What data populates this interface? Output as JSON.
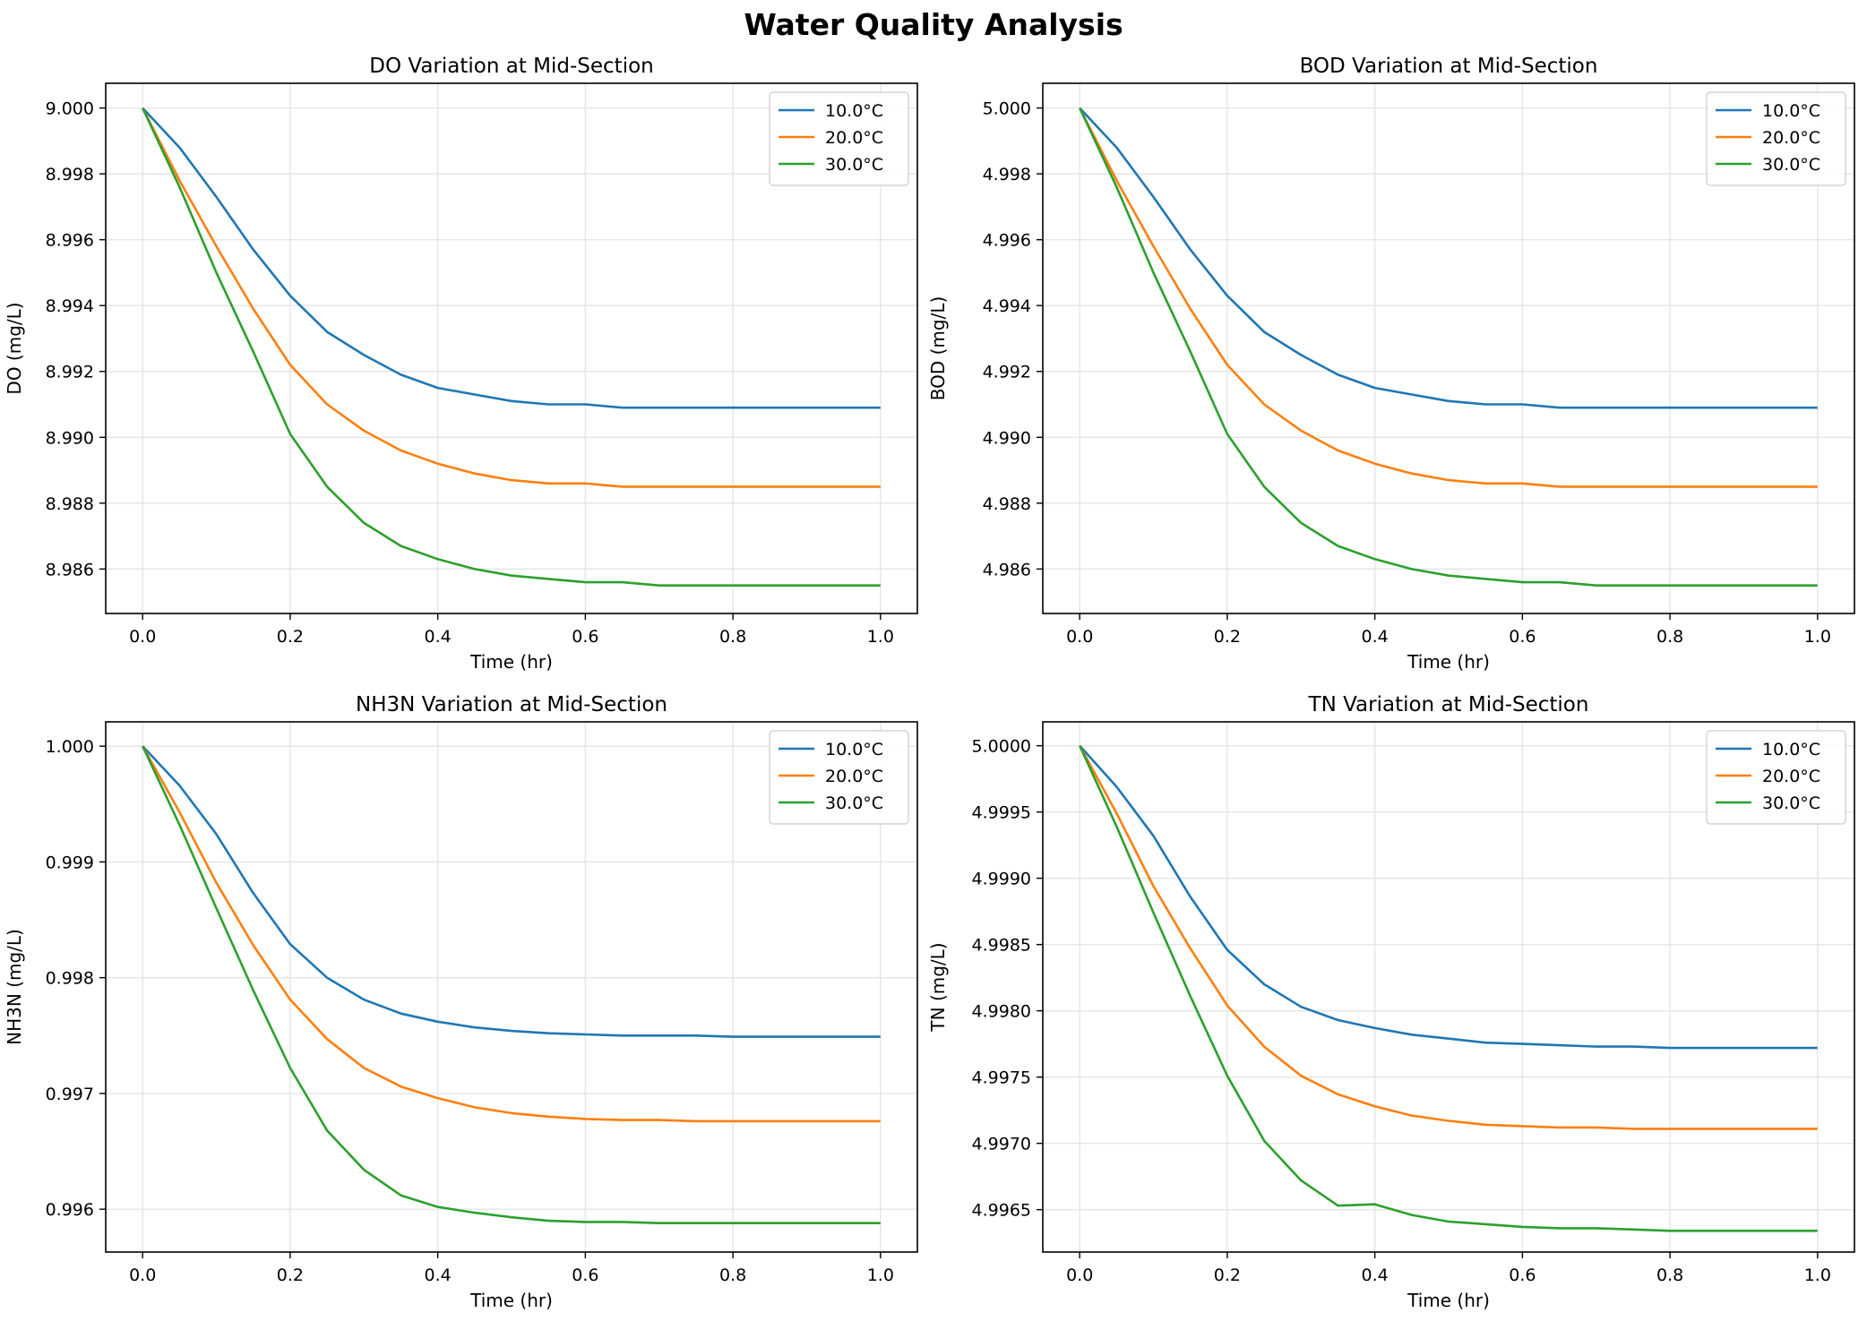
{
  "figure": {
    "title": "Water Quality Analysis"
  },
  "series_colors": [
    "#1f77b4",
    "#ff7f0e",
    "#2ca02c"
  ],
  "chart_data": [
    {
      "type": "line",
      "title": "DO Variation at Mid-Section",
      "xlabel": "Time (hr)",
      "ylabel": "DO (mg/L)",
      "xlim": [
        -0.05,
        1.05
      ],
      "ylim": [
        8.98465,
        9.00075
      ],
      "xticks": [
        0.0,
        0.2,
        0.4,
        0.6,
        0.8,
        1.0
      ],
      "xtick_labels": [
        "0.0",
        "0.2",
        "0.4",
        "0.6",
        "0.8",
        "1.0"
      ],
      "yticks": [
        8.986,
        8.988,
        8.99,
        8.992,
        8.994,
        8.996,
        8.998,
        9.0
      ],
      "ytick_labels": [
        "8.986",
        "8.988",
        "8.990",
        "8.992",
        "8.994",
        "8.996",
        "8.998",
        "9.000"
      ],
      "grid": true,
      "legend": "top-right",
      "x": [
        0,
        0.05,
        0.1,
        0.15,
        0.2,
        0.25,
        0.3,
        0.35,
        0.4,
        0.45,
        0.5,
        0.55,
        0.6,
        0.65,
        0.7,
        0.75,
        0.8,
        0.85,
        0.9,
        0.95,
        1.0
      ],
      "series": [
        {
          "name": "10.0°C",
          "values": [
            9.0,
            8.9988,
            8.9973,
            8.9957,
            8.9943,
            8.9932,
            8.9925,
            8.9919,
            8.9915,
            8.9913,
            8.9911,
            8.991,
            8.991,
            8.9909,
            8.9909,
            8.9909,
            8.9909,
            8.9909,
            8.9909,
            8.9909,
            8.9909
          ]
        },
        {
          "name": "20.0°C",
          "values": [
            9.0,
            8.9978,
            8.9958,
            8.9939,
            8.9922,
            8.991,
            8.9902,
            8.9896,
            8.9892,
            8.9889,
            8.9887,
            8.9886,
            8.9886,
            8.9885,
            8.9885,
            8.9885,
            8.9885,
            8.9885,
            8.9885,
            8.9885,
            8.9885
          ]
        },
        {
          "name": "30.0°C",
          "values": [
            9.0,
            8.9976,
            8.995,
            8.9926,
            8.9901,
            8.9885,
            8.9874,
            8.9867,
            8.9863,
            8.986,
            8.9858,
            8.9857,
            8.9856,
            8.9856,
            8.9855,
            8.9855,
            8.9855,
            8.9855,
            8.9855,
            8.9855,
            8.9855
          ]
        }
      ]
    },
    {
      "type": "line",
      "title": "BOD Variation at Mid-Section",
      "xlabel": "Time (hr)",
      "ylabel": "BOD (mg/L)",
      "xlim": [
        -0.05,
        1.05
      ],
      "ylim": [
        4.98465,
        5.00075
      ],
      "xticks": [
        0.0,
        0.2,
        0.4,
        0.6,
        0.8,
        1.0
      ],
      "xtick_labels": [
        "0.0",
        "0.2",
        "0.4",
        "0.6",
        "0.8",
        "1.0"
      ],
      "yticks": [
        4.986,
        4.988,
        4.99,
        4.992,
        4.994,
        4.996,
        4.998,
        5.0
      ],
      "ytick_labels": [
        "4.986",
        "4.988",
        "4.990",
        "4.992",
        "4.994",
        "4.996",
        "4.998",
        "5.000"
      ],
      "grid": true,
      "legend": "top-right",
      "x": [
        0,
        0.05,
        0.1,
        0.15,
        0.2,
        0.25,
        0.3,
        0.35,
        0.4,
        0.45,
        0.5,
        0.55,
        0.6,
        0.65,
        0.7,
        0.75,
        0.8,
        0.85,
        0.9,
        0.95,
        1.0
      ],
      "series": [
        {
          "name": "10.0°C",
          "values": [
            5.0,
            4.9988,
            4.9973,
            4.9957,
            4.9943,
            4.9932,
            4.9925,
            4.9919,
            4.9915,
            4.9913,
            4.9911,
            4.991,
            4.991,
            4.9909,
            4.9909,
            4.9909,
            4.9909,
            4.9909,
            4.9909,
            4.9909,
            4.9909
          ]
        },
        {
          "name": "20.0°C",
          "values": [
            5.0,
            4.9978,
            4.9958,
            4.9939,
            4.9922,
            4.991,
            4.9902,
            4.9896,
            4.9892,
            4.9889,
            4.9887,
            4.9886,
            4.9886,
            4.9885,
            4.9885,
            4.9885,
            4.9885,
            4.9885,
            4.9885,
            4.9885,
            4.9885
          ]
        },
        {
          "name": "30.0°C",
          "values": [
            5.0,
            4.9976,
            4.995,
            4.9926,
            4.9901,
            4.9885,
            4.9874,
            4.9867,
            4.9863,
            4.986,
            4.9858,
            4.9857,
            4.9856,
            4.9856,
            4.9855,
            4.9855,
            4.9855,
            4.9855,
            4.9855,
            4.9855,
            4.9855
          ]
        }
      ]
    },
    {
      "type": "line",
      "title": "NH3N Variation at Mid-Section",
      "xlabel": "Time (hr)",
      "ylabel": "NH3N (mg/L)",
      "xlim": [
        -0.05,
        1.05
      ],
      "ylim": [
        0.99563,
        1.00021
      ],
      "xticks": [
        0.0,
        0.2,
        0.4,
        0.6,
        0.8,
        1.0
      ],
      "xtick_labels": [
        "0.0",
        "0.2",
        "0.4",
        "0.6",
        "0.8",
        "1.0"
      ],
      "yticks": [
        0.996,
        0.997,
        0.998,
        0.999,
        1.0
      ],
      "ytick_labels": [
        "0.996",
        "0.997",
        "0.998",
        "0.999",
        "1.000"
      ],
      "grid": true,
      "legend": "top-right",
      "x": [
        0,
        0.05,
        0.1,
        0.15,
        0.2,
        0.25,
        0.3,
        0.35,
        0.4,
        0.45,
        0.5,
        0.55,
        0.6,
        0.65,
        0.7,
        0.75,
        0.8,
        0.85,
        0.9,
        0.95,
        1.0
      ],
      "series": [
        {
          "name": "10.0°C",
          "values": [
            1.0,
            0.99966,
            0.99924,
            0.99873,
            0.99829,
            0.998,
            0.99781,
            0.99769,
            0.99762,
            0.99757,
            0.99754,
            0.99752,
            0.99751,
            0.9975,
            0.9975,
            0.9975,
            0.99749,
            0.99749,
            0.99749,
            0.99749,
            0.99749
          ]
        },
        {
          "name": "20.0°C",
          "values": [
            1.0,
            0.99943,
            0.99882,
            0.99828,
            0.99781,
            0.99747,
            0.99722,
            0.99706,
            0.99696,
            0.99688,
            0.99683,
            0.9968,
            0.99678,
            0.99677,
            0.99677,
            0.99676,
            0.99676,
            0.99676,
            0.99676,
            0.99676,
            0.99676
          ]
        },
        {
          "name": "30.0°C",
          "values": [
            1.0,
            0.99932,
            0.9986,
            0.99789,
            0.99722,
            0.99668,
            0.99634,
            0.99612,
            0.99602,
            0.99597,
            0.99593,
            0.9959,
            0.99589,
            0.99589,
            0.99588,
            0.99588,
            0.99588,
            0.99588,
            0.99588,
            0.99588,
            0.99588
          ]
        }
      ]
    },
    {
      "type": "line",
      "title": "TN Variation at Mid-Section",
      "xlabel": "Time (hr)",
      "ylabel": "TN (mg/L)",
      "xlim": [
        -0.05,
        1.05
      ],
      "ylim": [
        4.99618,
        5.00018
      ],
      "xticks": [
        0.0,
        0.2,
        0.4,
        0.6,
        0.8,
        1.0
      ],
      "xtick_labels": [
        "0.0",
        "0.2",
        "0.4",
        "0.6",
        "0.8",
        "1.0"
      ],
      "yticks": [
        4.9965,
        4.997,
        4.9975,
        4.998,
        4.9985,
        4.999,
        4.9995,
        5.0
      ],
      "ytick_labels": [
        "4.9965",
        "4.9970",
        "4.9975",
        "4.9980",
        "4.9985",
        "4.9990",
        "4.9995",
        "5.0000"
      ],
      "grid": true,
      "legend": "top-right",
      "x": [
        0,
        0.05,
        0.1,
        0.15,
        0.2,
        0.25,
        0.3,
        0.35,
        0.4,
        0.45,
        0.5,
        0.55,
        0.6,
        0.65,
        0.7,
        0.75,
        0.8,
        0.85,
        0.9,
        0.95,
        1.0
      ],
      "series": [
        {
          "name": "10.0°C",
          "values": [
            5.0,
            4.99969,
            4.99932,
            4.99886,
            4.99846,
            4.9982,
            4.99803,
            4.99793,
            4.99787,
            4.99782,
            4.99779,
            4.99776,
            4.99775,
            4.99774,
            4.99773,
            4.99773,
            4.99772,
            4.99772,
            4.99772,
            4.99772,
            4.99772
          ]
        },
        {
          "name": "20.0°C",
          "values": [
            5.0,
            4.99949,
            4.99894,
            4.99847,
            4.99804,
            4.99773,
            4.99751,
            4.99737,
            4.99728,
            4.99721,
            4.99717,
            4.99714,
            4.99713,
            4.99712,
            4.99712,
            4.99711,
            4.99711,
            4.99711,
            4.99711,
            4.99711,
            4.99711
          ]
        },
        {
          "name": "30.0°C",
          "values": [
            5.0,
            4.99939,
            4.99874,
            4.99811,
            4.99751,
            4.99702,
            4.99672,
            4.99653,
            4.99654,
            4.99646,
            4.99641,
            4.99639,
            4.99637,
            4.99636,
            4.99636,
            4.99635,
            4.99634,
            4.99634,
            4.99634,
            4.99634,
            4.99634
          ]
        }
      ]
    }
  ]
}
